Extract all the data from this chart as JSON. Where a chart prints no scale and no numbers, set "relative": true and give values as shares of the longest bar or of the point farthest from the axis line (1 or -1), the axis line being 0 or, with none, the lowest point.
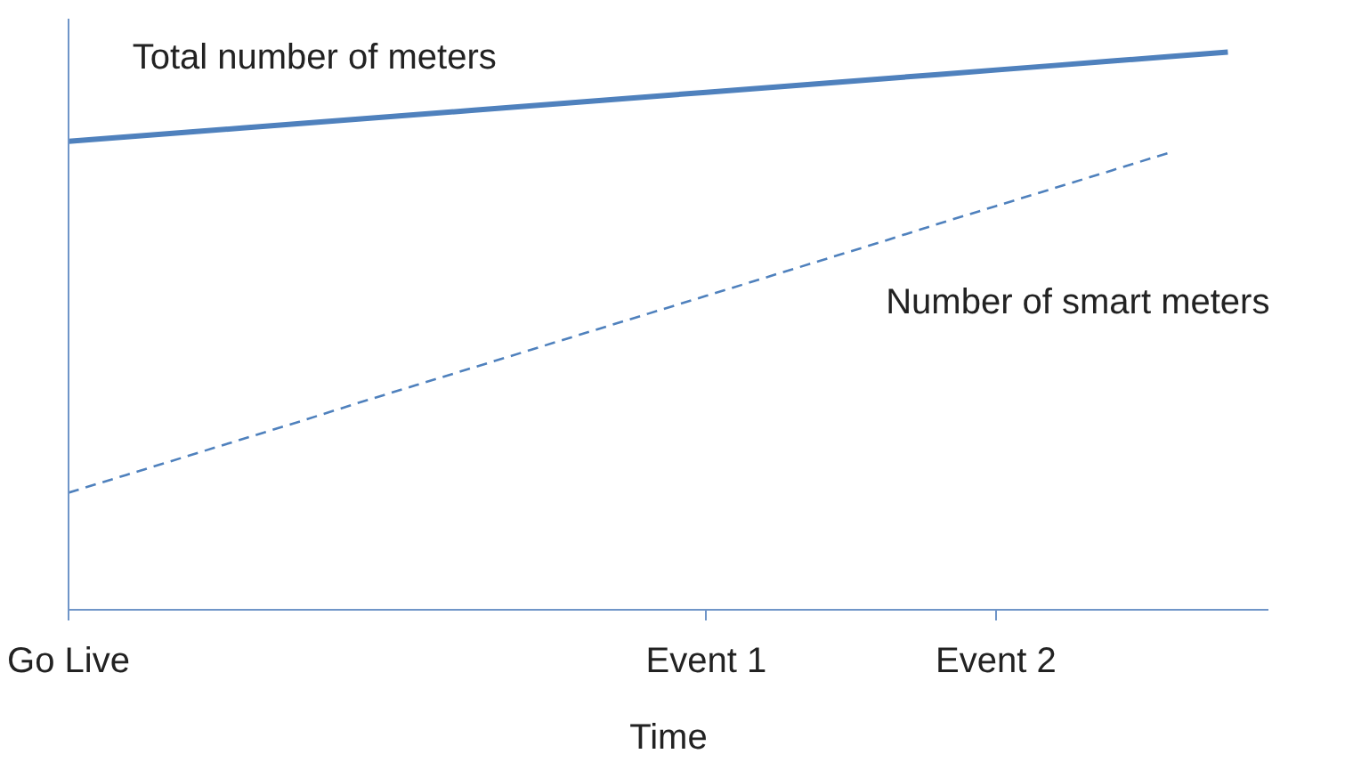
{
  "chart_data": {
    "type": "line",
    "relative": true,
    "xlabel": "Time",
    "categories": [
      "Go Live",
      null,
      null,
      null,
      null,
      null,
      null,
      null,
      null,
      null,
      null,
      "Event 1",
      null,
      null,
      null,
      null,
      "Event 2",
      null,
      null,
      null,
      null
    ],
    "grid": false,
    "marker": "none",
    "series": [
      {
        "name": "Total number of meters",
        "color": "#4f81bd",
        "line_style": "solid",
        "values": [
          0.84,
          0.848,
          0.856,
          0.864,
          0.872,
          0.88,
          0.888,
          0.896,
          0.904,
          0.912,
          0.92,
          0.928,
          0.936,
          0.944,
          0.952,
          0.96,
          0.968,
          0.976,
          0.984,
          0.992,
          1.0
        ]
      },
      {
        "name": "Number of smart meters",
        "color": "#4f81bd",
        "line_style": "dashed",
        "values": [
          0.21,
          0.242,
          0.274,
          0.306,
          0.338,
          0.371,
          0.403,
          0.435,
          0.467,
          0.499,
          0.531,
          0.563,
          0.595,
          0.627,
          0.659,
          0.692,
          0.724,
          0.756,
          0.788,
          0.82,
          null
        ]
      }
    ]
  }
}
